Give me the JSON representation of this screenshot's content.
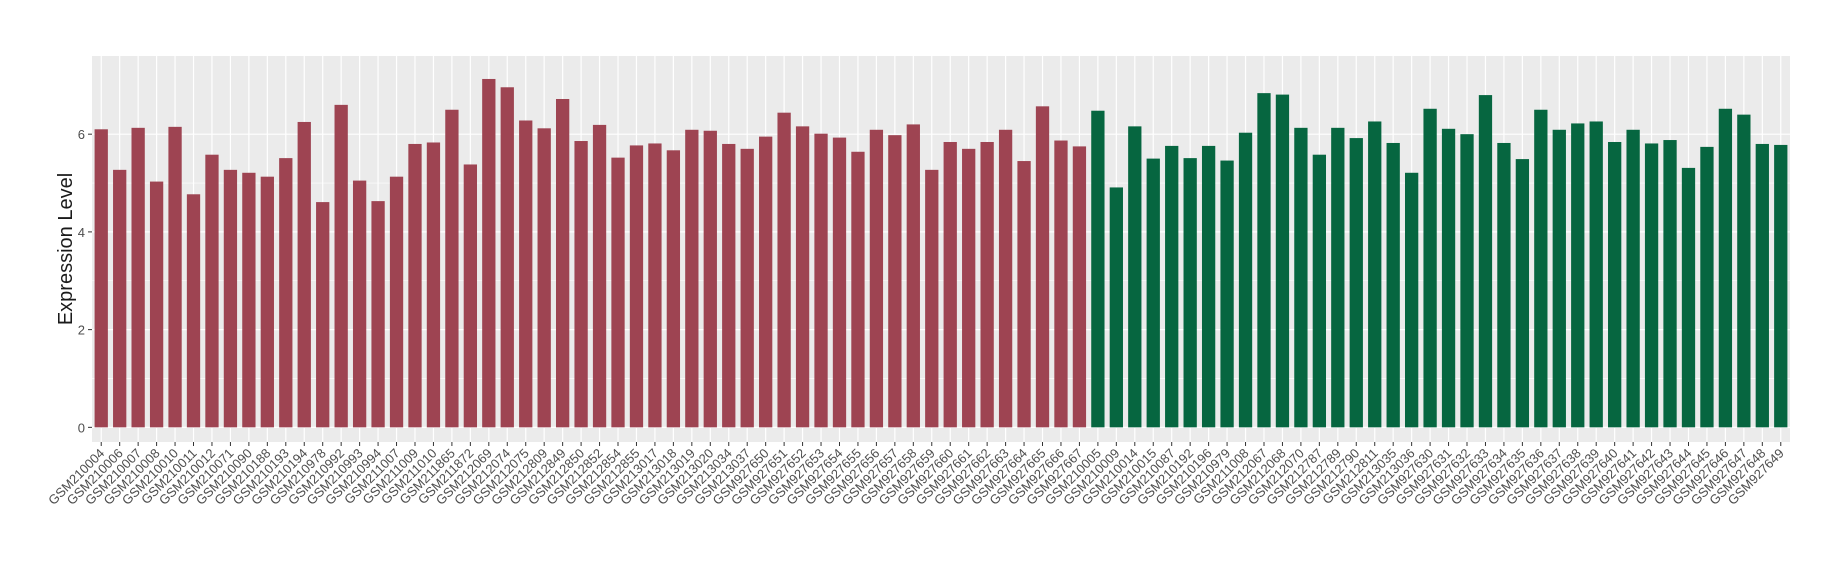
{
  "chart_data": {
    "type": "bar",
    "title": "",
    "xlabel": "",
    "ylabel": "Expression Level",
    "ylim": [
      -0.3,
      7.6
    ],
    "yticks": [
      0,
      2,
      4,
      6
    ],
    "grid": true,
    "legend": "none",
    "colors": {
      "group1": "#9e4452",
      "group2": "#066640",
      "panel": "#ebebeb",
      "grid": "#ffffff"
    },
    "categories": [
      "GSM210004",
      "GSM210006",
      "GSM210007",
      "GSM210008",
      "GSM210010",
      "GSM210011",
      "GSM210012",
      "GSM210071",
      "GSM210090",
      "GSM210188",
      "GSM210193",
      "GSM210194",
      "GSM210978",
      "GSM210992",
      "GSM210993",
      "GSM210994",
      "GSM211007",
      "GSM211009",
      "GSM211010",
      "GSM211865",
      "GSM211872",
      "GSM212069",
      "GSM212074",
      "GSM212075",
      "GSM212809",
      "GSM212849",
      "GSM212850",
      "GSM212852",
      "GSM212854",
      "GSM212855",
      "GSM213017",
      "GSM213018",
      "GSM213019",
      "GSM213020",
      "GSM213034",
      "GSM213037",
      "GSM927650",
      "GSM927651",
      "GSM927652",
      "GSM927653",
      "GSM927654",
      "GSM927655",
      "GSM927656",
      "GSM927657",
      "GSM927658",
      "GSM927659",
      "GSM927660",
      "GSM927661",
      "GSM927662",
      "GSM927663",
      "GSM927664",
      "GSM927665",
      "GSM927666",
      "GSM927667",
      "GSM210005",
      "GSM210009",
      "GSM210014",
      "GSM210015",
      "GSM210087",
      "GSM210192",
      "GSM210196",
      "GSM210979",
      "GSM211008",
      "GSM212067",
      "GSM212068",
      "GSM212070",
      "GSM212787",
      "GSM212789",
      "GSM212790",
      "GSM212811",
      "GSM213035",
      "GSM213036",
      "GSM927630",
      "GSM927631",
      "GSM927632",
      "GSM927633",
      "GSM927634",
      "GSM927635",
      "GSM927636",
      "GSM927637",
      "GSM927638",
      "GSM927639",
      "GSM927640",
      "GSM927641",
      "GSM927642",
      "GSM927643",
      "GSM927644",
      "GSM927645",
      "GSM927646",
      "GSM927647",
      "GSM927648",
      "GSM927649"
    ],
    "values": [
      6.1,
      5.27,
      6.13,
      5.03,
      6.15,
      4.77,
      5.58,
      5.27,
      5.21,
      5.13,
      5.51,
      6.25,
      4.61,
      6.6,
      5.05,
      4.63,
      5.13,
      5.8,
      5.83,
      6.5,
      5.38,
      7.13,
      6.96,
      6.28,
      6.12,
      6.72,
      5.86,
      6.19,
      5.52,
      5.77,
      5.81,
      5.67,
      6.09,
      6.07,
      5.8,
      5.7,
      5.95,
      6.44,
      6.16,
      6.01,
      5.93,
      5.64,
      6.09,
      5.98,
      6.2,
      5.27,
      5.84,
      5.7,
      5.84,
      6.09,
      5.45,
      6.57,
      5.87,
      5.75,
      6.48,
      4.91,
      6.16,
      5.5,
      5.76,
      5.51,
      5.76,
      5.46,
      6.03,
      6.84,
      6.81,
      6.13,
      5.58,
      6.13,
      5.92,
      6.26,
      5.82,
      5.21,
      6.52,
      6.11,
      6.0,
      6.8,
      5.82,
      5.49,
      6.5,
      6.09,
      6.22,
      6.26,
      5.84,
      6.09,
      5.81,
      5.88,
      5.31,
      5.74,
      6.52,
      6.4,
      5.8,
      5.78
    ],
    "groups": [
      1,
      1,
      1,
      1,
      1,
      1,
      1,
      1,
      1,
      1,
      1,
      1,
      1,
      1,
      1,
      1,
      1,
      1,
      1,
      1,
      1,
      1,
      1,
      1,
      1,
      1,
      1,
      1,
      1,
      1,
      1,
      1,
      1,
      1,
      1,
      1,
      1,
      1,
      1,
      1,
      1,
      1,
      1,
      1,
      1,
      1,
      1,
      1,
      1,
      1,
      1,
      1,
      1,
      1,
      2,
      2,
      2,
      2,
      2,
      2,
      2,
      2,
      2,
      2,
      2,
      2,
      2,
      2,
      2,
      2,
      2,
      2,
      2,
      2,
      2,
      2,
      2,
      2,
      2,
      2,
      2,
      2,
      2,
      2,
      2,
      2,
      2,
      2,
      2,
      2,
      2,
      2
    ]
  }
}
